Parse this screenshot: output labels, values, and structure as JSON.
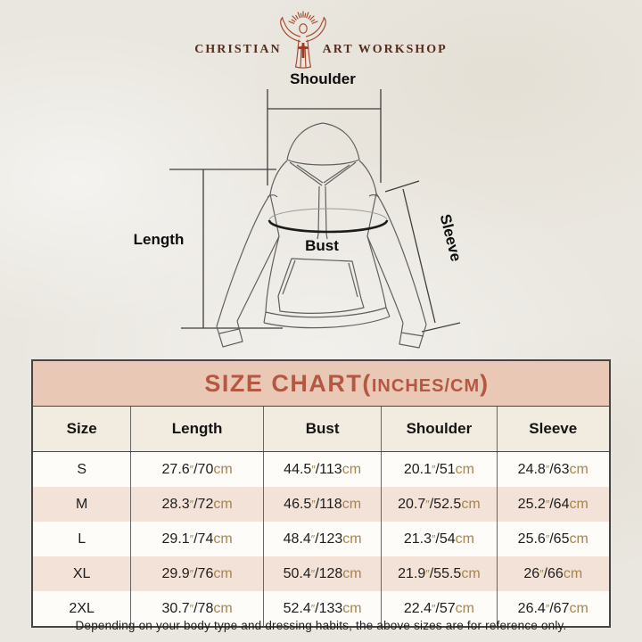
{
  "brand": {
    "name_left": "CHRISTIAN",
    "name_right": "ART WORKSHOP",
    "logo_icon": "jesus-open-arms-icon",
    "text_color": "#532e1f",
    "icon_color": "#a64b33"
  },
  "diagram": {
    "shoulder_label": "Shoulder",
    "length_label": "Length",
    "bust_label": "Bust",
    "sleeve_label": "Sleeve"
  },
  "size_chart": {
    "title_prefix": "SIZE CHART(",
    "title_units": "INCHES/CM",
    "title_suffix": ")",
    "columns": [
      "Size",
      "Length",
      "Bust",
      "Shoulder",
      "Sleeve"
    ],
    "rows": [
      {
        "size": "S",
        "measurements": [
          {
            "inches": "27.6",
            "cm": "70"
          },
          {
            "inches": "44.5",
            "cm": "113"
          },
          {
            "inches": "20.1",
            "cm": "51"
          },
          {
            "inches": "24.8",
            "cm": "63"
          }
        ]
      },
      {
        "size": "M",
        "measurements": [
          {
            "inches": "28.3",
            "cm": "72"
          },
          {
            "inches": "46.5",
            "cm": "118"
          },
          {
            "inches": "20.7",
            "cm": "52.5"
          },
          {
            "inches": "25.2",
            "cm": "64"
          }
        ]
      },
      {
        "size": "L",
        "measurements": [
          {
            "inches": "29.1",
            "cm": "74"
          },
          {
            "inches": "48.4",
            "cm": "123"
          },
          {
            "inches": "21.3",
            "cm": "54"
          },
          {
            "inches": "25.6",
            "cm": "65"
          }
        ]
      },
      {
        "size": "XL",
        "measurements": [
          {
            "inches": "29.9",
            "cm": "76"
          },
          {
            "inches": "50.4",
            "cm": "128"
          },
          {
            "inches": "21.9",
            "cm": "55.5"
          },
          {
            "inches": "26",
            "cm": "66"
          }
        ]
      },
      {
        "size": "2XL",
        "measurements": [
          {
            "inches": "30.7",
            "cm": "78"
          },
          {
            "inches": "52.4",
            "cm": "133"
          },
          {
            "inches": "22.4",
            "cm": "57"
          },
          {
            "inches": "26.4",
            "cm": "67"
          }
        ]
      }
    ],
    "inch_mark": "″",
    "slash": "/",
    "cm_suffix": "cm",
    "colors": {
      "title_band_bg": "#eac8b6",
      "title_text": "#b25843",
      "header_row_bg": "#f2ebdf",
      "row_light_bg": "#fdfcf9",
      "row_shaded_bg": "#f3e2d7",
      "unit_text": "#a5854e",
      "border": "#454545"
    }
  },
  "footnote": "Depending on your body type and dressing habits, the above sizes are for reference only."
}
